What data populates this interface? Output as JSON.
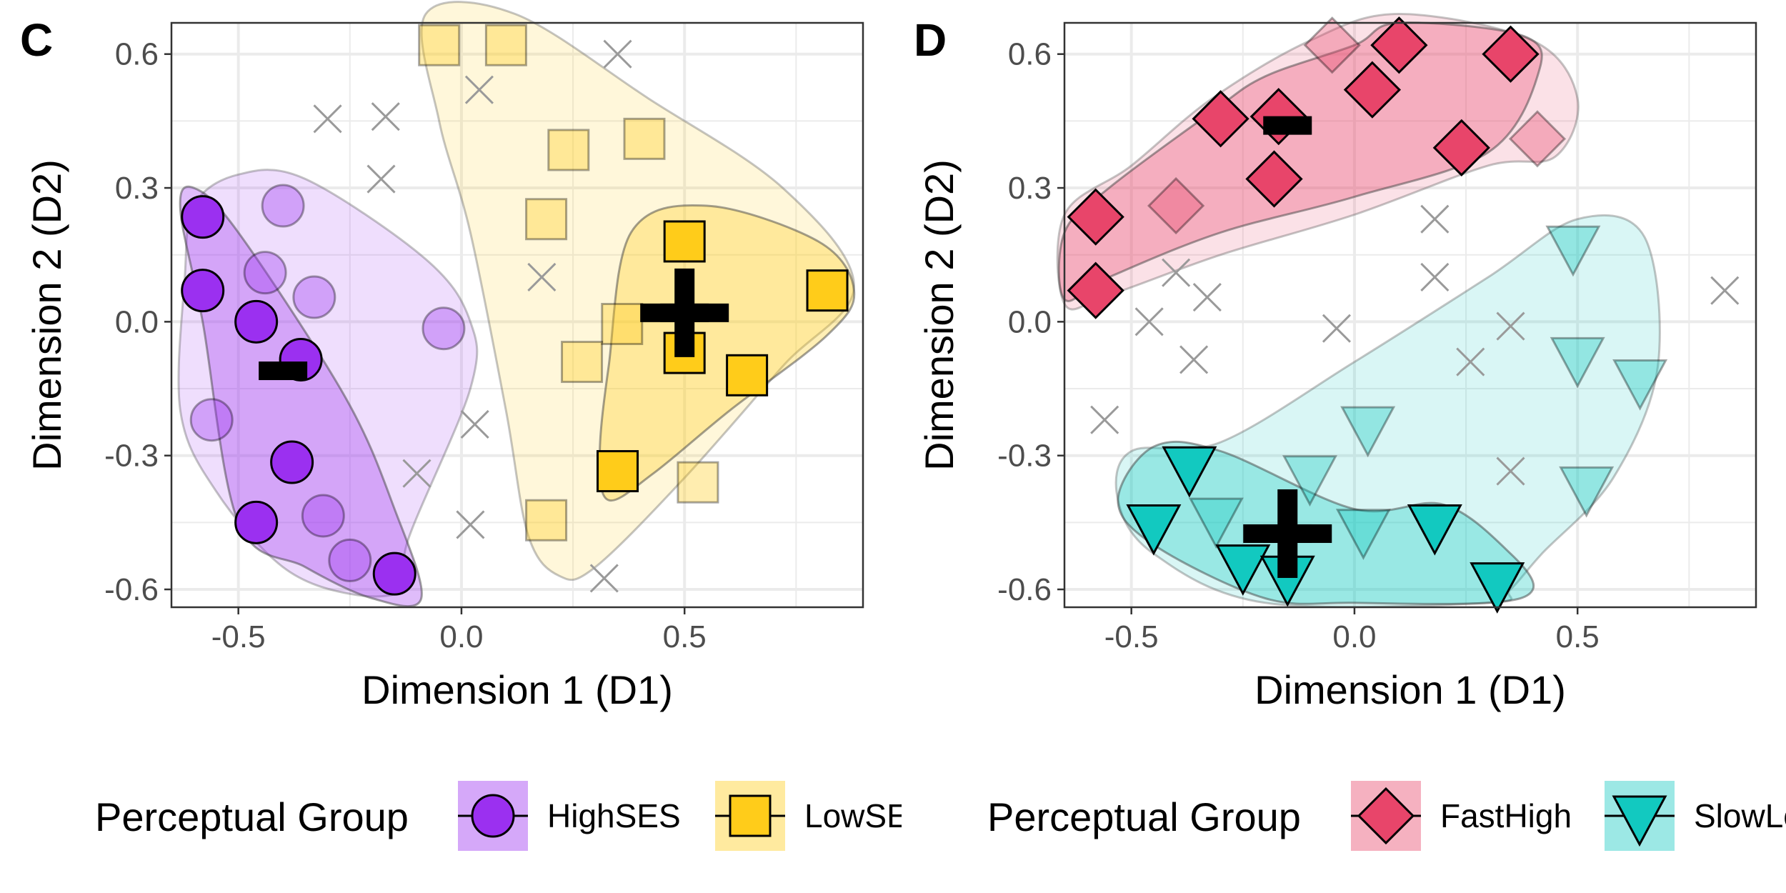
{
  "colors": {
    "high_ses": "#9B30F0",
    "low_ses": "#FFCC1A",
    "fast_high": "#E8456A",
    "slow_low": "#12C9C0",
    "cross": "#9a9a9a",
    "grid": "#ebebeb",
    "axis_text": "#4d4d4d"
  },
  "chart_data": [
    {
      "type": "scatter",
      "panel_label": "C",
      "xlabel": "Dimension 1 (D1)",
      "ylabel": "Dimension 2 (D2)",
      "xlim": [
        -0.65,
        0.9
      ],
      "ylim": [
        -0.64,
        0.67
      ],
      "x_ticks": [
        -0.5,
        0.0,
        0.5
      ],
      "x_tick_labels": [
        "-0.5",
        "0.0",
        "0.5"
      ],
      "y_ticks": [
        0.6,
        0.3,
        0.0,
        -0.3,
        -0.6
      ],
      "y_tick_labels": [
        "0.6",
        "0.3",
        "0.0",
        "-0.3",
        "-0.6"
      ],
      "grid": true,
      "legend": {
        "title": "Perceptual Group",
        "position": "bottom",
        "entries": [
          {
            "label": "HighSES",
            "shape": "circle",
            "color": "#9B30F0"
          },
          {
            "label": "LowSES",
            "shape": "square",
            "color": "#FFCC1A"
          }
        ]
      },
      "series": [
        {
          "name": "HighSES",
          "shape": "circle",
          "color": "#9B30F0",
          "core_points": [
            [
              -0.58,
              0.235
            ],
            [
              -0.58,
              0.07
            ],
            [
              -0.46,
              0.0
            ],
            [
              -0.36,
              -0.085
            ],
            [
              -0.38,
              -0.315
            ],
            [
              -0.46,
              -0.45
            ],
            [
              -0.15,
              -0.565
            ]
          ],
          "faded_points": [
            [
              -0.4,
              0.26
            ],
            [
              -0.44,
              0.11
            ],
            [
              -0.33,
              0.055
            ],
            [
              -0.56,
              -0.22
            ],
            [
              -0.31,
              -0.435
            ],
            [
              -0.25,
              -0.535
            ],
            [
              -0.04,
              -0.015
            ]
          ],
          "inner_hull": [
            [
              -0.6,
              0.3
            ],
            [
              -0.5,
              0.2
            ],
            [
              -0.26,
              -0.17
            ],
            [
              -0.15,
              -0.42
            ],
            [
              -0.09,
              -0.62
            ],
            [
              -0.2,
              -0.62
            ],
            [
              -0.35,
              -0.55
            ],
            [
              -0.5,
              -0.45
            ],
            [
              -0.58,
              0.0
            ],
            [
              -0.63,
              0.25
            ]
          ],
          "outer_hull": [
            [
              -0.6,
              0.26
            ],
            [
              -0.5,
              0.33
            ],
            [
              -0.35,
              0.32
            ],
            [
              -0.08,
              0.14
            ],
            [
              0.02,
              0.0
            ],
            [
              0.02,
              -0.15
            ],
            [
              -0.12,
              -0.49
            ],
            [
              -0.13,
              -0.6
            ],
            [
              -0.25,
              -0.61
            ],
            [
              -0.4,
              -0.55
            ],
            [
              -0.55,
              -0.38
            ],
            [
              -0.63,
              -0.2
            ],
            [
              -0.62,
              0.1
            ]
          ],
          "centroid": [
            -0.4,
            -0.11
          ],
          "centroid_marker": "minus"
        },
        {
          "name": "LowSES",
          "shape": "square",
          "color": "#FFCC1A",
          "core_points": [
            [
              0.5,
              0.18
            ],
            [
              0.82,
              0.07
            ],
            [
              0.5,
              -0.07
            ],
            [
              0.64,
              -0.12
            ],
            [
              0.35,
              -0.335
            ]
          ],
          "faded_points": [
            [
              -0.05,
              0.62
            ],
            [
              0.1,
              0.62
            ],
            [
              0.24,
              0.385
            ],
            [
              0.41,
              0.41
            ],
            [
              0.19,
              0.23
            ],
            [
              0.36,
              -0.005
            ],
            [
              0.27,
              -0.09
            ],
            [
              0.53,
              -0.36
            ],
            [
              0.19,
              -0.445
            ]
          ],
          "inner_hull": [
            [
              0.38,
              0.2
            ],
            [
              0.55,
              0.26
            ],
            [
              0.8,
              0.18
            ],
            [
              0.88,
              0.07
            ],
            [
              0.82,
              -0.03
            ],
            [
              0.6,
              -0.2
            ],
            [
              0.43,
              -0.34
            ],
            [
              0.33,
              -0.4
            ],
            [
              0.31,
              -0.3
            ],
            [
              0.33,
              -0.1
            ]
          ],
          "outer_hull": [
            [
              -0.08,
              0.69
            ],
            [
              0.12,
              0.69
            ],
            [
              0.42,
              0.5
            ],
            [
              0.72,
              0.3
            ],
            [
              0.88,
              0.08
            ],
            [
              0.72,
              -0.1
            ],
            [
              0.5,
              -0.35
            ],
            [
              0.3,
              -0.55
            ],
            [
              0.22,
              -0.57
            ],
            [
              0.15,
              -0.48
            ],
            [
              0.1,
              -0.2
            ],
            [
              0.02,
              0.2
            ],
            [
              -0.05,
              0.45
            ]
          ],
          "centroid": [
            0.5,
            0.02
          ],
          "centroid_marker": "plus"
        }
      ],
      "unassigned_points": [
        [
          -0.3,
          0.455
        ],
        [
          -0.17,
          0.46
        ],
        [
          -0.18,
          0.32
        ],
        [
          0.04,
          0.52
        ],
        [
          0.35,
          0.6
        ],
        [
          0.18,
          0.1
        ],
        [
          0.03,
          -0.23
        ],
        [
          -0.1,
          -0.34
        ],
        [
          0.02,
          -0.455
        ],
        [
          0.32,
          -0.575
        ]
      ]
    },
    {
      "type": "scatter",
      "panel_label": "D",
      "xlabel": "Dimension 1 (D1)",
      "ylabel": "Dimension 2 (D2)",
      "xlim": [
        -0.65,
        0.9
      ],
      "ylim": [
        -0.64,
        0.67
      ],
      "x_ticks": [
        -0.5,
        0.0,
        0.5
      ],
      "x_tick_labels": [
        "-0.5",
        "0.0",
        "0.5"
      ],
      "y_ticks": [
        0.6,
        0.3,
        0.0,
        -0.3,
        -0.6
      ],
      "y_tick_labels": [
        "0.6",
        "0.3",
        "0.0",
        "-0.3",
        "-0.6"
      ],
      "grid": true,
      "legend": {
        "title": "Perceptual Group",
        "position": "bottom",
        "entries": [
          {
            "label": "FastHigh",
            "shape": "diamond",
            "color": "#E8456A"
          },
          {
            "label": "SlowLow",
            "shape": "triangle-down",
            "color": "#12C9C0"
          }
        ]
      },
      "series": [
        {
          "name": "FastHigh",
          "shape": "diamond",
          "color": "#E8456A",
          "core_points": [
            [
              -0.58,
              0.235
            ],
            [
              -0.58,
              0.07
            ],
            [
              -0.3,
              0.455
            ],
            [
              -0.17,
              0.46
            ],
            [
              -0.18,
              0.32
            ],
            [
              0.04,
              0.52
            ],
            [
              0.1,
              0.62
            ],
            [
              0.35,
              0.6
            ],
            [
              0.24,
              0.39
            ]
          ],
          "faded_points": [
            [
              -0.05,
              0.62
            ],
            [
              -0.4,
              0.26
            ],
            [
              0.41,
              0.41
            ]
          ],
          "inner_hull": [
            [
              -0.65,
              0.2
            ],
            [
              -0.55,
              0.3
            ],
            [
              -0.32,
              0.47
            ],
            [
              -0.2,
              0.55
            ],
            [
              0.0,
              0.62
            ],
            [
              0.1,
              0.67
            ],
            [
              0.38,
              0.64
            ],
            [
              0.41,
              0.55
            ],
            [
              0.3,
              0.38
            ],
            [
              0.0,
              0.28
            ],
            [
              -0.3,
              0.2
            ],
            [
              -0.55,
              0.1
            ],
            [
              -0.65,
              0.05
            ]
          ],
          "outer_hull": [
            [
              -0.65,
              0.24
            ],
            [
              -0.5,
              0.35
            ],
            [
              -0.32,
              0.5
            ],
            [
              -0.1,
              0.63
            ],
            [
              0.1,
              0.69
            ],
            [
              0.4,
              0.63
            ],
            [
              0.5,
              0.5
            ],
            [
              0.45,
              0.37
            ],
            [
              0.3,
              0.35
            ],
            [
              0.0,
              0.24
            ],
            [
              -0.3,
              0.15
            ],
            [
              -0.55,
              0.06
            ],
            [
              -0.65,
              0.04
            ]
          ],
          "centroid": [
            -0.15,
            0.44
          ],
          "centroid_marker": "minus"
        },
        {
          "name": "SlowLow",
          "shape": "triangle-down",
          "color": "#12C9C0",
          "core_points": [
            [
              -0.37,
              -0.325
            ],
            [
              -0.45,
              -0.455
            ],
            [
              -0.25,
              -0.545
            ],
            [
              -0.15,
              -0.57
            ],
            [
              0.18,
              -0.455
            ],
            [
              0.32,
              -0.585
            ]
          ],
          "faded_points": [
            [
              0.49,
              0.17
            ],
            [
              0.5,
              -0.08
            ],
            [
              0.64,
              -0.13
            ],
            [
              0.03,
              -0.235
            ],
            [
              -0.1,
              -0.345
            ],
            [
              -0.31,
              -0.44
            ],
            [
              0.02,
              -0.465
            ],
            [
              0.52,
              -0.37
            ]
          ],
          "inner_hull": [
            [
              -0.45,
              -0.28
            ],
            [
              -0.3,
              -0.29
            ],
            [
              0.0,
              -0.42
            ],
            [
              0.2,
              -0.41
            ],
            [
              0.35,
              -0.52
            ],
            [
              0.4,
              -0.6
            ],
            [
              0.3,
              -0.63
            ],
            [
              0.0,
              -0.63
            ],
            [
              -0.2,
              -0.62
            ],
            [
              -0.45,
              -0.5
            ],
            [
              -0.53,
              -0.4
            ]
          ],
          "outer_hull": [
            [
              -0.5,
              -0.29
            ],
            [
              -0.3,
              -0.27
            ],
            [
              0.0,
              -0.09
            ],
            [
              0.3,
              0.1
            ],
            [
              0.5,
              0.23
            ],
            [
              0.65,
              0.19
            ],
            [
              0.68,
              -0.1
            ],
            [
              0.58,
              -0.35
            ],
            [
              0.42,
              -0.52
            ],
            [
              0.35,
              -0.6
            ],
            [
              0.3,
              -0.63
            ],
            [
              -0.2,
              -0.63
            ],
            [
              -0.45,
              -0.52
            ],
            [
              -0.53,
              -0.4
            ]
          ],
          "centroid": [
            -0.15,
            -0.475
          ],
          "centroid_marker": "plus"
        }
      ],
      "unassigned_points": [
        [
          -0.46,
          0.0
        ],
        [
          -0.4,
          0.11
        ],
        [
          -0.33,
          0.055
        ],
        [
          -0.36,
          -0.085
        ],
        [
          -0.56,
          -0.22
        ],
        [
          -0.04,
          -0.015
        ],
        [
          0.18,
          0.23
        ],
        [
          0.18,
          0.1
        ],
        [
          0.35,
          -0.01
        ],
        [
          0.26,
          -0.09
        ],
        [
          0.35,
          -0.335
        ],
        [
          0.83,
          0.07
        ]
      ]
    }
  ]
}
